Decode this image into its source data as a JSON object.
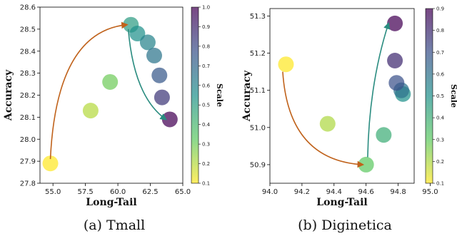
{
  "chart_data": [
    {
      "type": "scatter",
      "caption": "(a) Tmall",
      "xlabel": "Long-Tail",
      "ylabel": "Accuracy",
      "colorbar_label": "Scale",
      "xlim": [
        54,
        65
      ],
      "ylim": [
        27.8,
        28.6
      ],
      "xticks": [
        "55.0",
        "57.5",
        "60.0",
        "62.5",
        "65.0"
      ],
      "yticks": [
        "27.8",
        "27.9",
        "28.0",
        "28.1",
        "28.2",
        "28.3",
        "28.4",
        "28.5",
        "28.6"
      ],
      "colorbar_range": [
        0.1,
        1.0
      ],
      "colorbar_ticks": [
        "0.1",
        "0.2",
        "0.3",
        "0.4",
        "0.5",
        "0.6",
        "0.7",
        "0.8",
        "0.9",
        "1.0"
      ],
      "points": [
        {
          "x": 54.8,
          "y": 27.89,
          "scale": 0.1
        },
        {
          "x": 57.9,
          "y": 28.13,
          "scale": 0.2
        },
        {
          "x": 59.4,
          "y": 28.26,
          "scale": 0.3
        },
        {
          "x": 61.0,
          "y": 28.52,
          "scale": 0.5
        },
        {
          "x": 61.5,
          "y": 28.48,
          "scale": 0.55
        },
        {
          "x": 62.3,
          "y": 28.44,
          "scale": 0.6
        },
        {
          "x": 62.8,
          "y": 28.38,
          "scale": 0.65
        },
        {
          "x": 63.2,
          "y": 28.29,
          "scale": 0.75
        },
        {
          "x": 63.4,
          "y": 28.19,
          "scale": 0.85
        },
        {
          "x": 64.0,
          "y": 28.09,
          "scale": 1.0
        }
      ],
      "arrows": [
        {
          "from": [
            54.8,
            27.91
          ],
          "to": [
            60.7,
            28.52
          ],
          "color": "#c0621b"
        },
        {
          "from": [
            60.8,
            28.5
          ],
          "to": [
            63.7,
            28.09
          ],
          "color": "#2a8c80"
        }
      ]
    },
    {
      "type": "scatter",
      "caption": "(b) Diginetica",
      "xlabel": "Long-Tail",
      "ylabel": "Accuracy",
      "colorbar_label": "Scale",
      "xlim": [
        94.0,
        94.9
      ],
      "ylim": [
        50.85,
        51.32
      ],
      "xticks": [
        "94.0",
        "94.2",
        "94.4",
        "94.6",
        "94.8",
        "95.0"
      ],
      "yticks": [
        "50.9",
        "51.0",
        "51.1",
        "51.2",
        "51.3"
      ],
      "colorbar_range": [
        0.1,
        0.9
      ],
      "colorbar_ticks": [
        "0.1",
        "0.2",
        "0.3",
        "0.4",
        "0.5",
        "0.6",
        "0.7",
        "0.8",
        "0.9"
      ],
      "points": [
        {
          "x": 94.1,
          "y": 51.17,
          "scale": 0.1
        },
        {
          "x": 94.36,
          "y": 51.01,
          "scale": 0.2
        },
        {
          "x": 94.6,
          "y": 50.9,
          "scale": 0.3
        },
        {
          "x": 94.71,
          "y": 50.98,
          "scale": 0.4
        },
        {
          "x": 94.83,
          "y": 51.09,
          "scale": 0.5
        },
        {
          "x": 94.82,
          "y": 51.1,
          "scale": 0.6
        },
        {
          "x": 94.79,
          "y": 51.12,
          "scale": 0.7
        },
        {
          "x": 94.78,
          "y": 51.18,
          "scale": 0.8
        },
        {
          "x": 94.78,
          "y": 51.28,
          "scale": 0.9
        }
      ],
      "arrows": [
        {
          "from": [
            94.08,
            51.15
          ],
          "to": [
            94.58,
            50.9
          ],
          "color": "#c0621b"
        },
        {
          "from": [
            94.61,
            50.92
          ],
          "to": [
            94.74,
            51.28
          ],
          "color": "#2a8c80"
        }
      ]
    }
  ]
}
